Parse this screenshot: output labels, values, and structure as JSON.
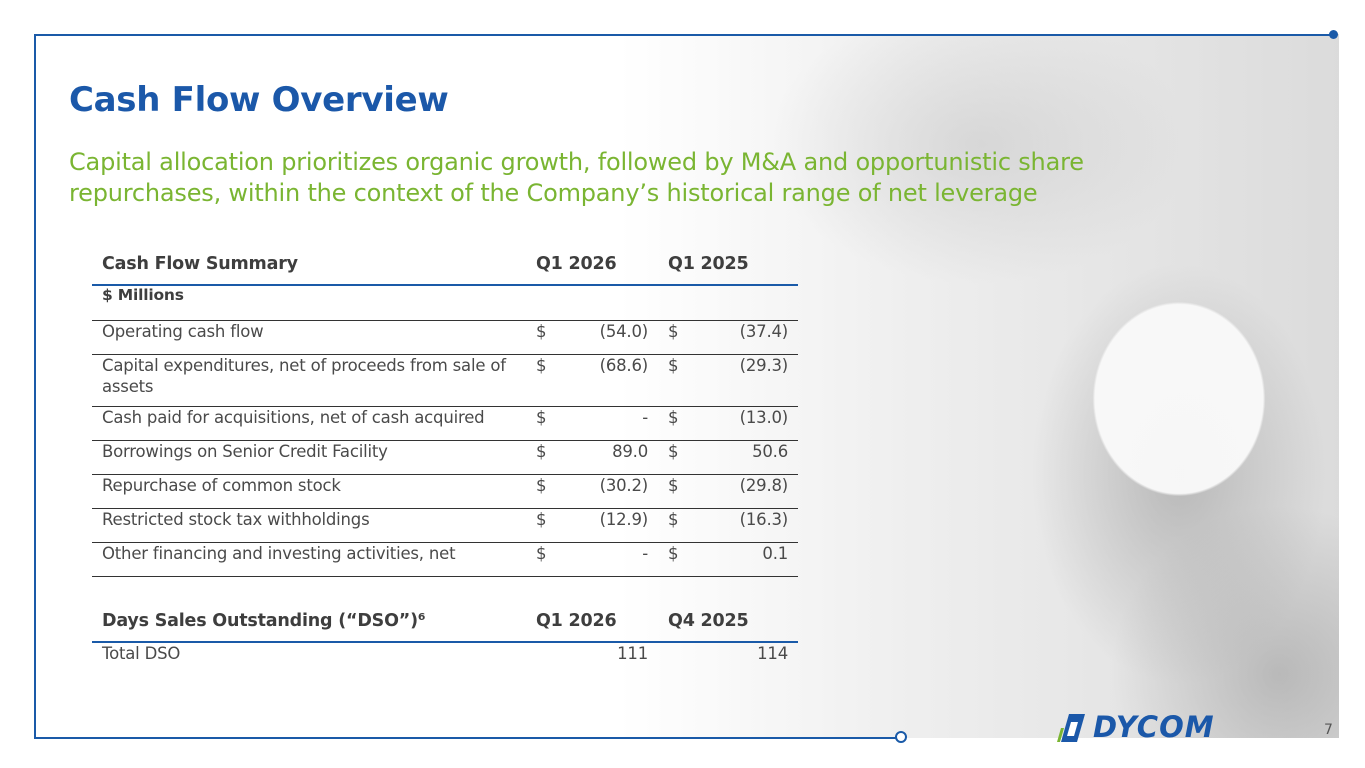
{
  "slide": {
    "title": "Cash Flow Overview",
    "subtitle": "Capital allocation prioritizes organic growth, followed by M&A and opportunistic share repurchases, within the context of the Company’s historical range of net leverage",
    "page_number": "7",
    "logo_text": "DYCOM",
    "colors": {
      "accent_blue": "#1b58a9",
      "accent_green": "#7ab532"
    }
  },
  "cash_flow_table": {
    "header": {
      "label": "Cash Flow Summary",
      "col1": "Q1 2026",
      "col2": "Q1 2025"
    },
    "units": "$ Millions",
    "rows": [
      {
        "label": "Operating cash flow",
        "cur1": "$",
        "val1": "(54.0)",
        "cur2": "$",
        "val2": "(37.4)"
      },
      {
        "label": "Capital expenditures, net of proceeds from sale of assets",
        "cur1": "$",
        "val1": "(68.6)",
        "cur2": "$",
        "val2": "(29.3)"
      },
      {
        "label": "Cash paid for acquisitions, net of cash acquired",
        "cur1": "$",
        "val1": "-",
        "cur2": "$",
        "val2": "(13.0)"
      },
      {
        "label": "Borrowings on Senior Credit Facility",
        "cur1": "$",
        "val1": "89.0",
        "cur2": "$",
        "val2": "50.6"
      },
      {
        "label": "Repurchase of common stock",
        "cur1": "$",
        "val1": "(30.2)",
        "cur2": "$",
        "val2": "(29.8)"
      },
      {
        "label": "Restricted stock tax withholdings",
        "cur1": "$",
        "val1": "(12.9)",
        "cur2": "$",
        "val2": "(16.3)"
      },
      {
        "label": "Other financing and investing activities, net",
        "cur1": "$",
        "val1": "-",
        "cur2": "$",
        "val2": "0.1"
      }
    ]
  },
  "dso_table": {
    "header": {
      "label": "Days Sales Outstanding (“DSO”)⁶",
      "col1": "Q1 2026",
      "col2": "Q4 2025"
    },
    "rows": [
      {
        "label": "Total DSO",
        "val1": "111",
        "val2": "114"
      }
    ]
  }
}
